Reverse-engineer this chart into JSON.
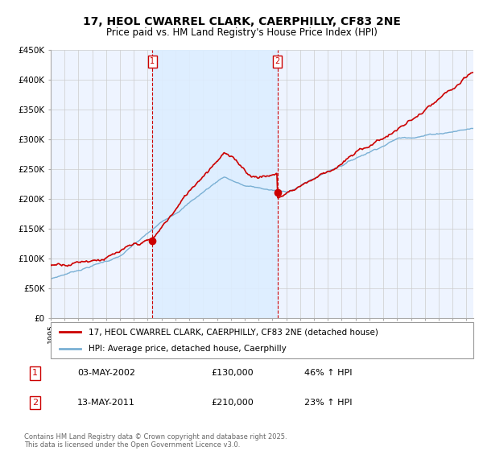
{
  "title": "17, HEOL CWARREL CLARK, CAERPHILLY, CF83 2NE",
  "subtitle": "Price paid vs. HM Land Registry's House Price Index (HPI)",
  "ylim": [
    0,
    450000
  ],
  "yticks": [
    0,
    50000,
    100000,
    150000,
    200000,
    250000,
    300000,
    350000,
    400000,
    450000
  ],
  "ytick_labels": [
    "£0",
    "£50K",
    "£100K",
    "£150K",
    "£200K",
    "£250K",
    "£300K",
    "£350K",
    "£400K",
    "£450K"
  ],
  "sale1_date_num": 2002.34,
  "sale1_price": 130000,
  "sale2_date_num": 2011.36,
  "sale2_price": 210000,
  "line1_color": "#cc0000",
  "line2_color": "#7ab0d4",
  "vline_color": "#cc0000",
  "shade_color": "#ddeeff",
  "grid_color": "#cccccc",
  "bg_color": "#eef4ff",
  "plot_bg": "#ffffff",
  "legend1_text": "17, HEOL CWARREL CLARK, CAERPHILLY, CF83 2NE (detached house)",
  "legend2_text": "HPI: Average price, detached house, Caerphilly",
  "footnote": "Contains HM Land Registry data © Crown copyright and database right 2025.\nThis data is licensed under the Open Government Licence v3.0.",
  "table_row1": [
    "1",
    "03-MAY-2002",
    "£130,000",
    "46% ↑ HPI"
  ],
  "table_row2": [
    "2",
    "13-MAY-2011",
    "£210,000",
    "23% ↑ HPI"
  ]
}
